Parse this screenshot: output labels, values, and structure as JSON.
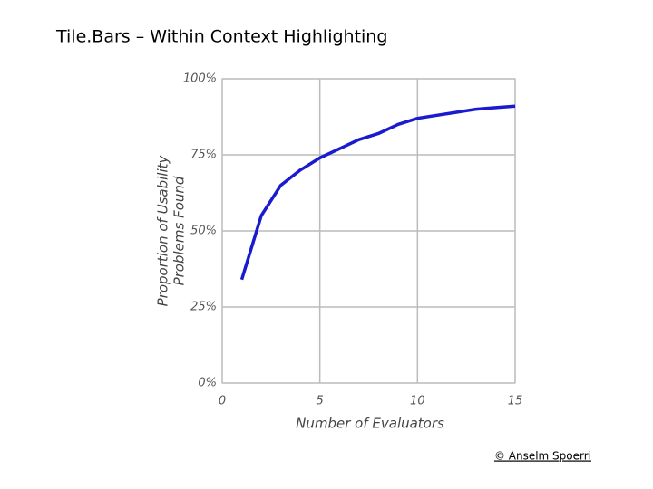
{
  "header": {
    "title": "Tile.Bars – Within Context Highlighting"
  },
  "chart_data": {
    "type": "line",
    "x_label": "Number of Evaluators",
    "y_label": [
      "Proportion of Usability",
      "Problems Found"
    ],
    "x": [
      1,
      2,
      3,
      4,
      5,
      6,
      7,
      8,
      9,
      10,
      11,
      12,
      13,
      14,
      15
    ],
    "values": [
      34,
      55,
      65,
      70,
      74,
      77,
      80,
      82,
      85,
      87,
      88,
      89,
      90,
      90.5,
      91
    ],
    "color": "#1a1ad0",
    "xlim": [
      0,
      15
    ],
    "xticks": [
      0,
      5,
      10,
      15
    ],
    "ylim": [
      0,
      100
    ],
    "yticks": [
      {
        "value": 0,
        "label": "0%"
      },
      {
        "value": 25,
        "label": "25%"
      },
      {
        "value": 50,
        "label": "50%"
      },
      {
        "value": 75,
        "label": "75%"
      },
      {
        "value": 100,
        "label": "100%"
      }
    ],
    "grid": true
  },
  "footer": {
    "credit": "© Anselm Spoerri"
  }
}
